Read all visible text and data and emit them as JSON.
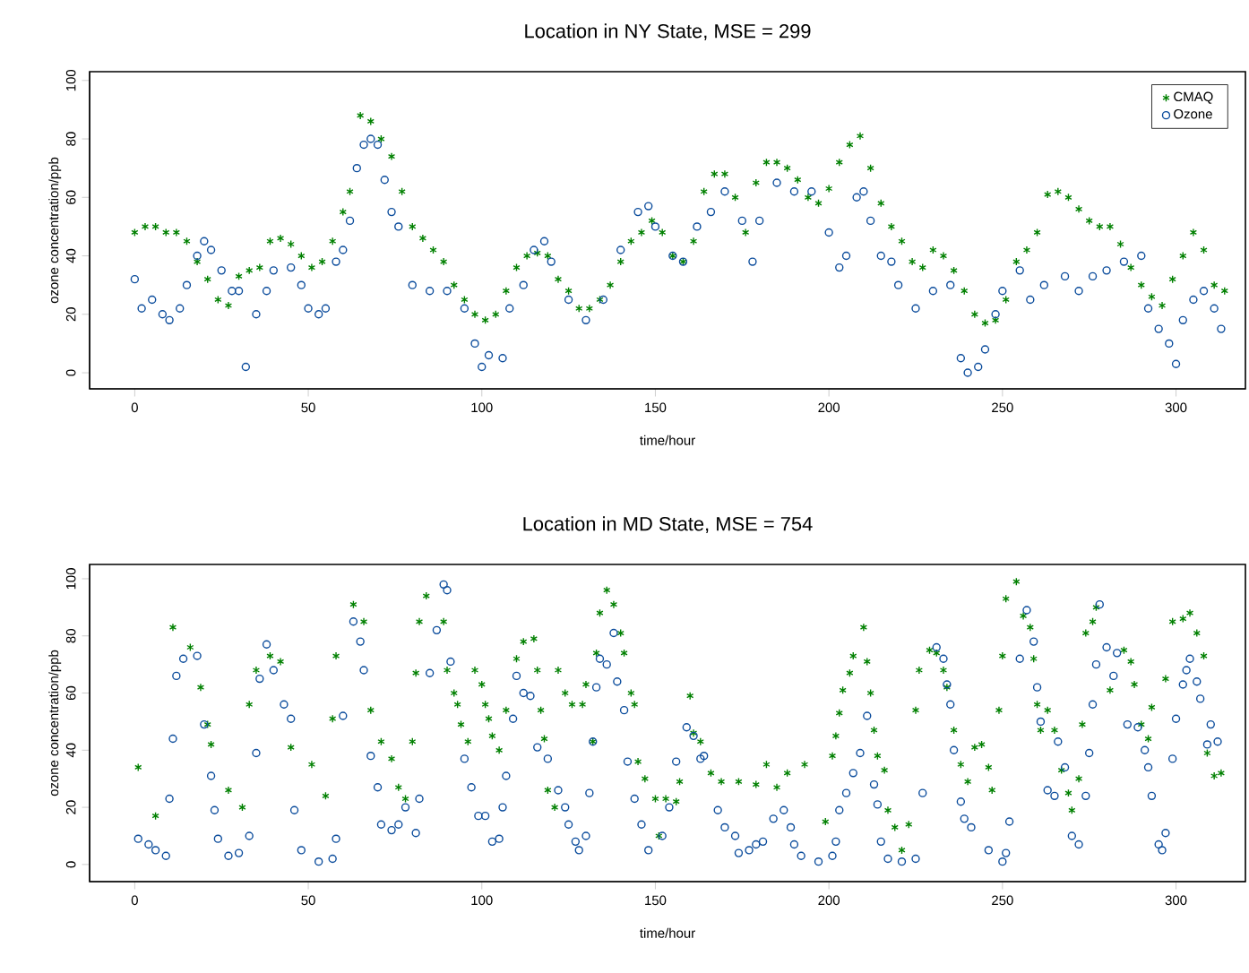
{
  "chart_data": [
    {
      "type": "scatter",
      "title": "Location in NY State, MSE = 299",
      "xlabel": "time/hour",
      "ylabel": "ozone concentration/ppb",
      "xlim": [
        -13,
        320
      ],
      "ylim": [
        -5.5,
        103
      ],
      "xticks": [
        0,
        50,
        100,
        150,
        200,
        250,
        300
      ],
      "yticks": [
        0,
        20,
        40,
        60,
        80,
        100
      ],
      "legend": "top right",
      "series": [
        {
          "name": "CMAQ",
          "color": "#008000",
          "marker": "cross",
          "x": [
            0,
            3,
            6,
            9,
            12,
            15,
            18,
            21,
            24,
            27,
            30,
            33,
            36,
            39,
            42,
            45,
            48,
            51,
            54,
            57,
            60,
            62,
            65,
            68,
            71,
            74,
            77,
            80,
            83,
            86,
            89,
            92,
            95,
            98,
            101,
            104,
            107,
            110,
            113,
            116,
            119,
            122,
            125,
            128,
            131,
            134,
            137,
            140,
            143,
            146,
            149,
            152,
            155,
            158,
            161,
            164,
            167,
            170,
            173,
            176,
            179,
            182,
            185,
            188,
            191,
            194,
            197,
            200,
            203,
            206,
            209,
            212,
            215,
            218,
            221,
            224,
            227,
            230,
            233,
            236,
            239,
            242,
            245,
            248,
            251,
            254,
            257,
            260,
            263,
            266,
            269,
            272,
            275,
            278,
            281,
            284,
            287,
            290,
            293,
            296,
            299,
            302,
            305,
            308,
            311,
            314
          ],
          "values": [
            48,
            50,
            50,
            48,
            48,
            45,
            38,
            32,
            25,
            23,
            33,
            35,
            36,
            45,
            46,
            44,
            40,
            36,
            38,
            45,
            55,
            62,
            88,
            86,
            80,
            74,
            62,
            50,
            46,
            42,
            38,
            30,
            25,
            20,
            18,
            20,
            28,
            36,
            40,
            41,
            40,
            32,
            28,
            22,
            22,
            25,
            30,
            38,
            45,
            48,
            52,
            48,
            40,
            38,
            45,
            62,
            68,
            68,
            60,
            48,
            65,
            72,
            72,
            70,
            66,
            60,
            58,
            63,
            72,
            78,
            81,
            70,
            58,
            50,
            45,
            38,
            36,
            42,
            40,
            35,
            28,
            20,
            17,
            18,
            25,
            38,
            42,
            48,
            61,
            62,
            60,
            56,
            52,
            50,
            50,
            44,
            36,
            30,
            26,
            23,
            32,
            40,
            48,
            42,
            30,
            28
          ]
        },
        {
          "name": "Ozone",
          "color": "#0b4c9c",
          "marker": "circle",
          "x": [
            0,
            2,
            5,
            8,
            10,
            13,
            15,
            18,
            20,
            22,
            25,
            28,
            30,
            32,
            35,
            38,
            40,
            45,
            48,
            50,
            53,
            55,
            58,
            60,
            62,
            64,
            66,
            68,
            70,
            72,
            74,
            76,
            80,
            85,
            90,
            95,
            98,
            100,
            102,
            106,
            108,
            112,
            115,
            118,
            120,
            125,
            130,
            135,
            140,
            145,
            148,
            150,
            155,
            158,
            162,
            166,
            170,
            175,
            178,
            180,
            185,
            190,
            195,
            200,
            203,
            205,
            208,
            210,
            212,
            215,
            218,
            220,
            225,
            230,
            235,
            238,
            240,
            243,
            245,
            248,
            250,
            255,
            258,
            262,
            268,
            272,
            276,
            280,
            285,
            290,
            292,
            295,
            298,
            300,
            302,
            305,
            308,
            311,
            313
          ],
          "values": [
            32,
            22,
            25,
            20,
            18,
            22,
            30,
            40,
            45,
            42,
            35,
            28,
            28,
            2,
            20,
            28,
            35,
            36,
            30,
            22,
            20,
            22,
            38,
            42,
            52,
            70,
            78,
            80,
            78,
            66,
            55,
            50,
            30,
            28,
            28,
            22,
            10,
            2,
            6,
            5,
            22,
            30,
            42,
            45,
            38,
            25,
            18,
            25,
            42,
            55,
            57,
            50,
            40,
            38,
            50,
            55,
            62,
            52,
            38,
            52,
            65,
            62,
            62,
            48,
            36,
            40,
            60,
            62,
            52,
            40,
            38,
            30,
            22,
            28,
            30,
            5,
            0,
            2,
            8,
            20,
            28,
            35,
            25,
            30,
            33,
            28,
            33,
            35,
            38,
            40,
            22,
            15,
            10,
            3,
            18,
            25,
            28,
            22,
            15
          ]
        }
      ]
    },
    {
      "type": "scatter",
      "title": "Location in MD State, MSE = 754",
      "xlabel": "time/hour",
      "ylabel": "ozone concentration/ppb",
      "xlim": [
        -13,
        320
      ],
      "ylim": [
        -6,
        105
      ],
      "xticks": [
        0,
        50,
        100,
        150,
        200,
        250,
        300
      ],
      "yticks": [
        0,
        20,
        40,
        60,
        80,
        100
      ],
      "series": [
        {
          "color": "#008000",
          "marker": "cross",
          "x": [
            1,
            6,
            11,
            16,
            19,
            21,
            22,
            27,
            31,
            33,
            35,
            39,
            42,
            45,
            51,
            55,
            57,
            58,
            63,
            66,
            68,
            71,
            74,
            76,
            78,
            80,
            81,
            82,
            84,
            89,
            90,
            92,
            93,
            94,
            96,
            98,
            100,
            101,
            102,
            103,
            105,
            107,
            110,
            112,
            115,
            116,
            117,
            118,
            119,
            121,
            122,
            124,
            126,
            129,
            130,
            132,
            133,
            134,
            136,
            138,
            140,
            141,
            143,
            144,
            145,
            147,
            150,
            151,
            153,
            156,
            157,
            160,
            161,
            163,
            166,
            169,
            174,
            179,
            182,
            185,
            188,
            193,
            199,
            201,
            202,
            203,
            204,
            206,
            207,
            210,
            211,
            212,
            213,
            214,
            216,
            217,
            219,
            221,
            223,
            225,
            226,
            229,
            231,
            233,
            234,
            236,
            238,
            240,
            242,
            244,
            246,
            247,
            249,
            250,
            251,
            254,
            256,
            258,
            259,
            260,
            261,
            263,
            265,
            267,
            269,
            270,
            272,
            273,
            274,
            276,
            277,
            281,
            285,
            287,
            288,
            290,
            292,
            293,
            297,
            299,
            302,
            304,
            306,
            308,
            309,
            311,
            313
          ],
          "values": [
            34,
            17,
            83,
            76,
            62,
            49,
            42,
            26,
            20,
            56,
            68,
            73,
            71,
            41,
            35,
            24,
            51,
            73,
            91,
            85,
            54,
            43,
            37,
            27,
            23,
            43,
            67,
            85,
            94,
            85,
            68,
            60,
            56,
            49,
            43,
            68,
            63,
            56,
            51,
            45,
            40,
            54,
            72,
            78,
            79,
            68,
            54,
            44,
            26,
            20,
            68,
            60,
            56,
            56,
            63,
            43,
            74,
            88,
            96,
            91,
            81,
            74,
            60,
            56,
            36,
            30,
            23,
            10,
            23,
            22,
            29,
            59,
            46,
            43,
            32,
            29,
            29,
            28,
            35,
            27,
            32,
            35,
            15,
            38,
            45,
            53,
            61,
            67,
            73,
            83,
            71,
            60,
            47,
            38,
            33,
            19,
            13,
            5,
            14,
            54,
            68,
            75,
            74,
            68,
            62,
            47,
            35,
            29,
            41,
            42,
            34,
            26,
            54,
            73,
            93,
            99,
            87,
            83,
            72,
            56,
            47,
            54,
            47,
            33,
            25,
            19,
            30,
            49,
            81,
            85,
            90,
            61,
            75,
            71,
            63,
            49,
            44,
            55,
            65,
            85,
            86,
            88,
            81,
            73,
            39,
            31,
            32
          ]
        },
        {
          "color": "#0b4c9c",
          "marker": "circle",
          "x": [
            1,
            4,
            6,
            9,
            10,
            11,
            12,
            14,
            18,
            20,
            22,
            23,
            24,
            27,
            30,
            33,
            35,
            36,
            38,
            40,
            43,
            45,
            46,
            48,
            53,
            57,
            58,
            60,
            63,
            65,
            66,
            68,
            70,
            71,
            74,
            76,
            78,
            81,
            82,
            85,
            87,
            89,
            90,
            91,
            95,
            97,
            99,
            101,
            103,
            105,
            106,
            107,
            109,
            110,
            112,
            114,
            116,
            119,
            122,
            124,
            125,
            127,
            128,
            130,
            131,
            132,
            133,
            134,
            136,
            138,
            139,
            141,
            142,
            144,
            146,
            148,
            152,
            154,
            156,
            159,
            161,
            163,
            164,
            168,
            170,
            173,
            174,
            177,
            179,
            181,
            184,
            187,
            189,
            190,
            192,
            197,
            201,
            202,
            203,
            205,
            207,
            209,
            211,
            213,
            214,
            215,
            217,
            221,
            225,
            227,
            231,
            233,
            234,
            235,
            236,
            238,
            239,
            241,
            246,
            250,
            251,
            252,
            255,
            257,
            259,
            260,
            261,
            263,
            265,
            266,
            268,
            270,
            272,
            274,
            275,
            276,
            277,
            278,
            280,
            282,
            283,
            286,
            289,
            291,
            292,
            293,
            295,
            296,
            297,
            299,
            300,
            302,
            303,
            304,
            306,
            307,
            309,
            310,
            312
          ],
          "values": [
            9,
            7,
            5,
            3,
            23,
            44,
            66,
            72,
            73,
            49,
            31,
            19,
            9,
            3,
            4,
            10,
            39,
            65,
            77,
            68,
            56,
            51,
            19,
            5,
            1,
            2,
            9,
            52,
            85,
            78,
            68,
            38,
            27,
            14,
            12,
            14,
            20,
            11,
            23,
            67,
            82,
            98,
            96,
            71,
            37,
            27,
            17,
            17,
            8,
            9,
            20,
            31,
            51,
            66,
            60,
            59,
            41,
            37,
            26,
            20,
            14,
            8,
            5,
            10,
            25,
            43,
            62,
            72,
            70,
            81,
            64,
            54,
            36,
            23,
            14,
            5,
            10,
            20,
            36,
            48,
            45,
            37,
            38,
            19,
            13,
            10,
            4,
            5,
            7,
            8,
            16,
            19,
            13,
            7,
            3,
            1,
            3,
            8,
            19,
            25,
            32,
            39,
            52,
            28,
            21,
            8,
            2,
            1,
            2,
            25,
            76,
            72,
            63,
            56,
            40,
            22,
            16,
            13,
            5,
            1,
            4,
            15,
            72,
            89,
            78,
            62,
            50,
            26,
            24,
            43,
            34,
            10,
            7,
            24,
            39,
            56,
            70,
            91,
            76,
            66,
            74,
            49,
            48,
            40,
            34,
            24,
            7,
            5,
            11,
            37,
            51,
            63,
            68,
            72,
            64,
            58,
            42,
            49,
            43
          ]
        }
      ]
    }
  ]
}
